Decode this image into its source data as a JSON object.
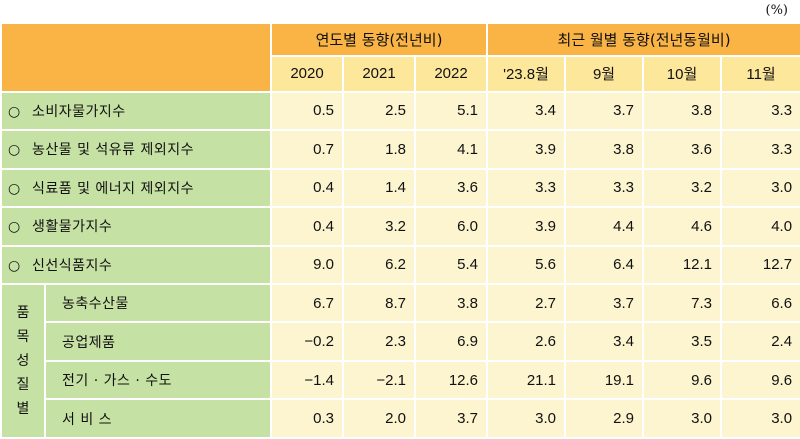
{
  "unit": "(%)",
  "header": {
    "group_years": "연도별 동향(전년비)",
    "group_months": "최근 월별 동향(전년동월비)",
    "columns": [
      "2020",
      "2021",
      "2022",
      "'23.8월",
      "9월",
      "10월",
      "11월"
    ]
  },
  "rows": [
    {
      "bullet": "○",
      "label": "소비자물가지수",
      "values": [
        "0.5",
        "2.5",
        "5.1",
        "3.4",
        "3.7",
        "3.8",
        "3.3"
      ]
    },
    {
      "bullet": "○",
      "label": "농산물 및 석유류 제외지수",
      "values": [
        "0.7",
        "1.8",
        "4.1",
        "3.9",
        "3.8",
        "3.6",
        "3.3"
      ]
    },
    {
      "bullet": "○",
      "label": "식료품 및 에너지 제외지수",
      "values": [
        "0.4",
        "1.4",
        "3.6",
        "3.3",
        "3.3",
        "3.2",
        "3.0"
      ]
    },
    {
      "bullet": "○",
      "label": "생활물가지수",
      "values": [
        "0.4",
        "3.2",
        "6.0",
        "3.9",
        "4.4",
        "4.6",
        "4.0"
      ]
    },
    {
      "bullet": "○",
      "label": "신선식품지수",
      "values": [
        "9.0",
        "6.2",
        "5.4",
        "5.6",
        "6.4",
        "12.1",
        "12.7"
      ]
    }
  ],
  "group": {
    "label_chars": [
      "품",
      "목",
      "성",
      "질",
      "별"
    ],
    "rows": [
      {
        "label": "농축수산물",
        "values": [
          "6.7",
          "8.7",
          "3.8",
          "2.7",
          "3.7",
          "7.3",
          "6.6"
        ]
      },
      {
        "label": "공업제품",
        "values": [
          "−0.2",
          "2.3",
          "6.9",
          "2.6",
          "3.4",
          "3.5",
          "2.4"
        ]
      },
      {
        "label": "전기 · 가스 · 수도",
        "values": [
          "−1.4",
          "−2.1",
          "12.6",
          "21.1",
          "19.1",
          "9.6",
          "9.6"
        ]
      },
      {
        "label": "서 비 스",
        "values": [
          "0.3",
          "2.0",
          "3.7",
          "3.0",
          "2.9",
          "3.0",
          "3.0"
        ]
      }
    ]
  },
  "colors": {
    "header_orange": "#f9b445",
    "header_yellow": "#fde79b",
    "label_green": "#c6e1a4",
    "cell_cream": "#fdf5d0"
  }
}
